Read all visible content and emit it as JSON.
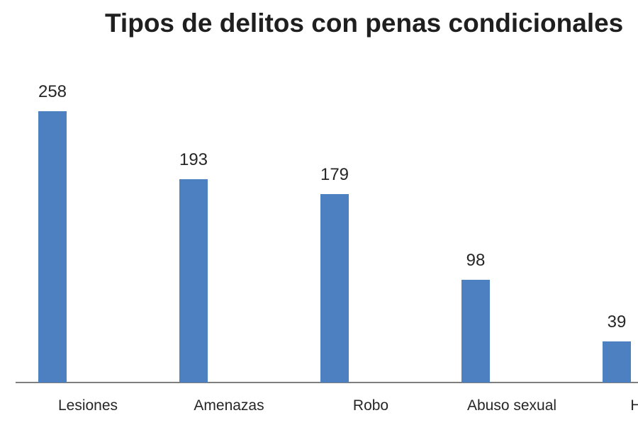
{
  "chart_data": {
    "type": "bar",
    "title": "Tipos de delitos con penas condicionales",
    "categories": [
      "Lesiones",
      "Amenazas",
      "Robo",
      "Abuso sexual",
      "H"
    ],
    "values": [
      258,
      193,
      179,
      98,
      39
    ],
    "xlabel": "",
    "ylabel": "",
    "data_labels": true,
    "grid": false,
    "legend": false,
    "y_axis_visible": false,
    "last_category_label_clipped_at_right_edge": true,
    "colors": {
      "bar": "#4d80c1",
      "axis_line": "#7f7f7f",
      "title_text": "#1f1f1f",
      "label_text": "#262626"
    }
  }
}
